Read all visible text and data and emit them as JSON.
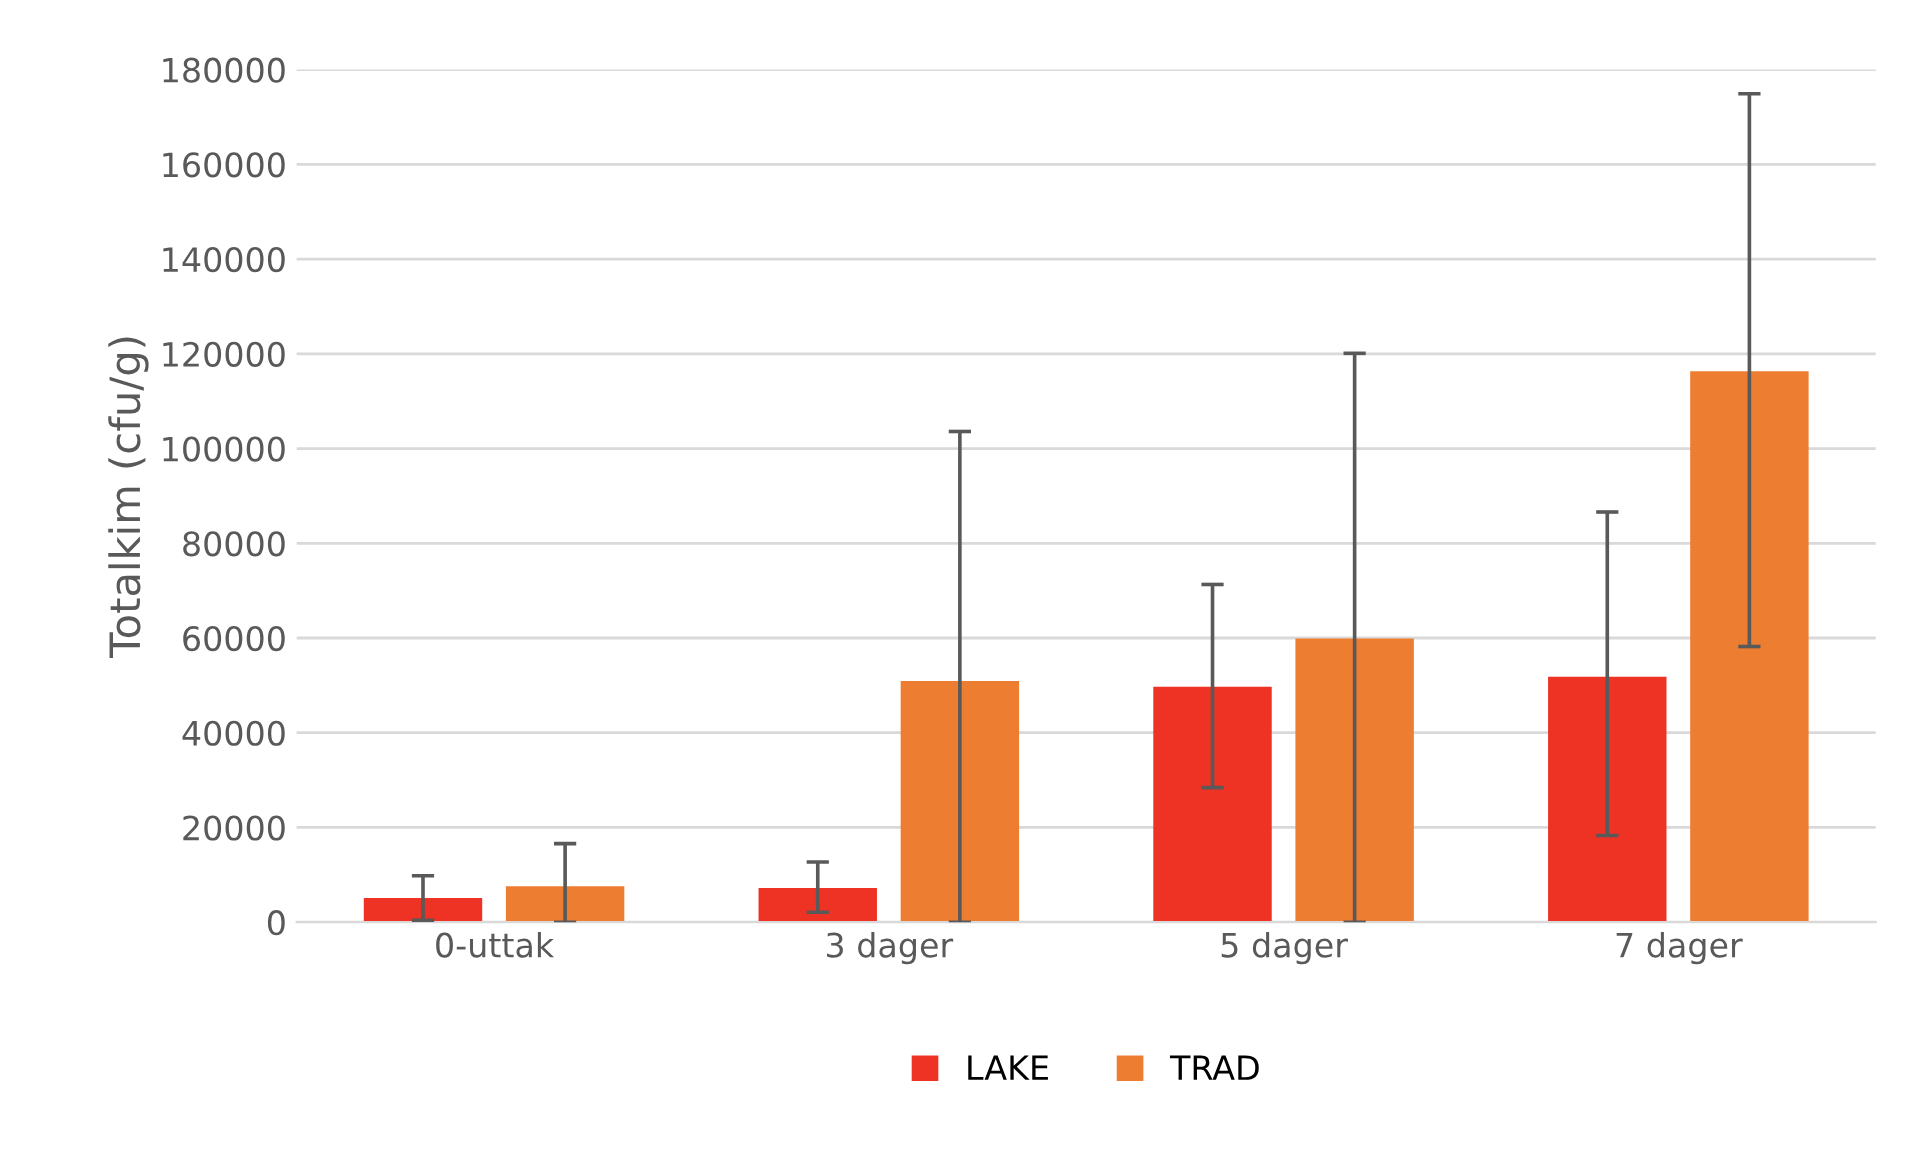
{
  "chart_data": {
    "type": "bar",
    "ylabel": "Totalkim (cfu/g)",
    "categories": [
      "0-uttak",
      "3 dager",
      "5 dager",
      "7 dager"
    ],
    "series": [
      {
        "name": "LAKE",
        "color": "#ee3224",
        "values": [
          5100,
          7200,
          49700,
          51800
        ],
        "errors": [
          [
            400,
            9800
          ],
          [
            2100,
            12700
          ],
          [
            28400,
            71300
          ],
          [
            18300,
            86600
          ]
        ]
      },
      {
        "name": "TRAD",
        "color": "#ed7d31",
        "values": [
          7600,
          50900,
          59900,
          116300
        ],
        "errors": [
          [
            0,
            16600
          ],
          [
            0,
            103600
          ],
          [
            0,
            120100
          ],
          [
            58200,
            174900
          ]
        ]
      }
    ],
    "ylim": [
      0,
      180000
    ],
    "yticks": [
      0,
      20000,
      40000,
      60000,
      80000,
      100000,
      120000,
      140000,
      160000,
      180000
    ],
    "grid": "y",
    "legend": "bottom"
  }
}
